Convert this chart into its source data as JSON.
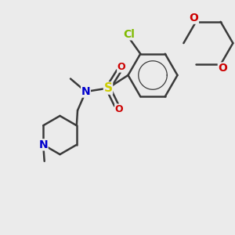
{
  "background_color": "#ebebeb",
  "bond_color": "#3a3a3a",
  "bond_width": 1.8,
  "atom_colors": {
    "Cl": "#7fba00",
    "O": "#cc0000",
    "S": "#cccc00",
    "N": "#0000cc",
    "C": "#3a3a3a"
  },
  "font_size": 9
}
